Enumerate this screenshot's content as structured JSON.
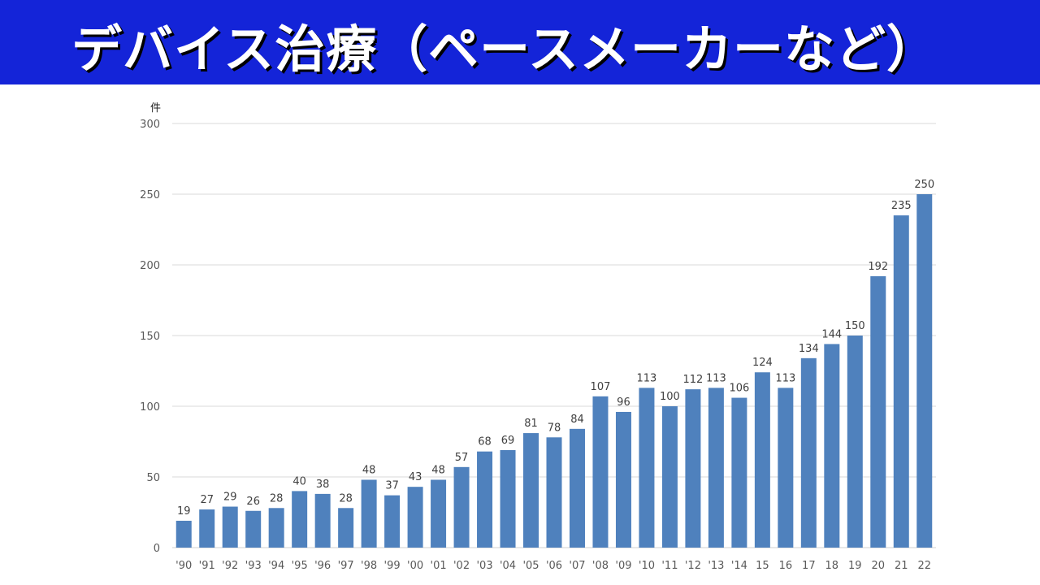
{
  "header": {
    "title": "デバイス治療（ペースメーカーなど）"
  },
  "chart_data": {
    "type": "bar",
    "title": "デバイス治療（ペースメーカーなど）",
    "ylabel": "件",
    "ylim": [
      0,
      300
    ],
    "yticks": [
      0,
      50,
      100,
      150,
      200,
      250,
      300
    ],
    "grid": true,
    "bar_color": "#4f81bd",
    "categories": [
      "'90",
      "'91",
      "'92",
      "'93",
      "'94",
      "'95",
      "'96",
      "'97",
      "'98",
      "'99",
      "'00",
      "'01",
      "'02",
      "'03",
      "'04",
      "'05",
      "'06",
      "'07",
      "'08",
      "'09",
      "'10",
      "'11",
      "'12",
      "'13",
      "'14",
      "15",
      "16",
      "17",
      "18",
      "19",
      "20",
      "21",
      "22"
    ],
    "values": [
      19,
      27,
      29,
      26,
      28,
      40,
      38,
      28,
      48,
      37,
      43,
      48,
      57,
      68,
      69,
      81,
      78,
      84,
      107,
      96,
      113,
      100,
      112,
      113,
      106,
      124,
      113,
      134,
      144,
      150,
      192,
      235,
      250
    ]
  }
}
